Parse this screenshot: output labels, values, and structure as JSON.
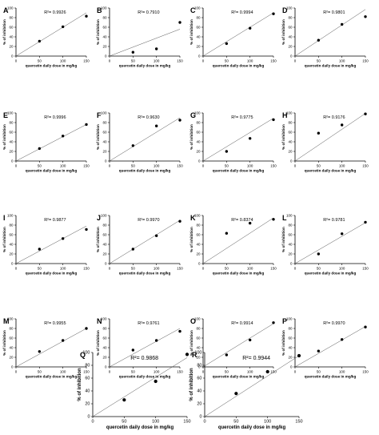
{
  "figure": {
    "common": {
      "xlabel": "quercetin daily dose in mg/kg",
      "ylabel": "% of inhibition",
      "xticks": [
        0,
        50,
        100,
        150
      ],
      "yticks": [
        0,
        20,
        40,
        60,
        80,
        100
      ],
      "xlim": [
        0,
        150
      ],
      "ylim": [
        0,
        100
      ]
    }
  },
  "chart_data": [
    {
      "label": "A",
      "type": "scatter",
      "r2": "R²= 0.9926",
      "x": [
        50,
        100,
        150
      ],
      "y": [
        31,
        61,
        83
      ],
      "fit": [
        [
          0,
          0
        ],
        [
          150,
          90
        ]
      ]
    },
    {
      "label": "B",
      "type": "scatter",
      "r2": "R²= 0.7910",
      "x": [
        50,
        100,
        150
      ],
      "y": [
        8,
        15,
        70
      ],
      "fit": [
        [
          0,
          0
        ],
        [
          150,
          56
        ]
      ]
    },
    {
      "label": "C",
      "type": "scatter",
      "r2": "R²= 0.9994",
      "x": [
        50,
        100,
        150
      ],
      "y": [
        26,
        58,
        88
      ],
      "fit": [
        [
          0,
          0
        ],
        [
          150,
          90
        ]
      ]
    },
    {
      "label": "D",
      "type": "scatter",
      "r2": "R²= 0.9801",
      "x": [
        50,
        100,
        150
      ],
      "y": [
        33,
        66,
        82
      ],
      "fit": [
        [
          0,
          0
        ],
        [
          150,
          97
        ]
      ]
    },
    {
      "label": "E",
      "type": "scatter",
      "r2": "R²= 0.9996",
      "x": [
        50,
        100,
        150
      ],
      "y": [
        26,
        52,
        76
      ],
      "fit": [
        [
          0,
          0
        ],
        [
          150,
          76
        ]
      ]
    },
    {
      "label": "F",
      "type": "scatter",
      "r2": "R²= 0.9630",
      "x": [
        50,
        100,
        150
      ],
      "y": [
        32,
        73,
        85
      ],
      "fit": [
        [
          0,
          0
        ],
        [
          150,
          90
        ]
      ]
    },
    {
      "label": "G",
      "type": "scatter",
      "r2": "R²= 0.9775",
      "x": [
        50,
        100,
        150
      ],
      "y": [
        20,
        47,
        86
      ],
      "fit": [
        [
          0,
          0
        ],
        [
          150,
          89
        ]
      ]
    },
    {
      "label": "H",
      "type": "scatter",
      "r2": "R²= 0.9176",
      "x": [
        50,
        100,
        150
      ],
      "y": [
        58,
        75,
        98
      ],
      "fit": [
        [
          0,
          0
        ],
        [
          150,
          99
        ]
      ]
    },
    {
      "label": "I",
      "type": "scatter",
      "r2": "R²= 0.9877",
      "x": [
        50,
        100,
        150
      ],
      "y": [
        30,
        52,
        71
      ],
      "fit": [
        [
          0,
          0
        ],
        [
          150,
          78
        ]
      ]
    },
    {
      "label": "J",
      "type": "scatter",
      "r2": "R²= 0.9970",
      "x": [
        50,
        100,
        150
      ],
      "y": [
        30,
        58,
        88
      ],
      "fit": [
        [
          0,
          0
        ],
        [
          150,
          90
        ]
      ]
    },
    {
      "label": "K",
      "type": "scatter",
      "r2": "R²= 0.8374",
      "x": [
        50,
        100,
        150
      ],
      "y": [
        63,
        84,
        92
      ],
      "fit": [
        [
          0,
          0
        ],
        [
          150,
          95
        ]
      ]
    },
    {
      "label": "L",
      "type": "scatter",
      "r2": "R²= 0.9781",
      "x": [
        50,
        100,
        150
      ],
      "y": [
        20,
        62,
        86
      ],
      "fit": [
        [
          0,
          0
        ],
        [
          150,
          85
        ]
      ]
    },
    {
      "label": "M",
      "type": "scatter",
      "r2": "R²= 0.9955",
      "x": [
        50,
        100,
        150
      ],
      "y": [
        32,
        55,
        80
      ],
      "fit": [
        [
          0,
          0
        ],
        [
          150,
          80
        ]
      ]
    },
    {
      "label": "N",
      "type": "scatter",
      "r2": "R²= 0.9761",
      "x": [
        50,
        100,
        150
      ],
      "y": [
        35,
        55,
        74
      ],
      "fit": [
        [
          0,
          0
        ],
        [
          150,
          80
        ]
      ]
    },
    {
      "label": "O",
      "type": "scatter",
      "r2": "R²= 0.9914",
      "x": [
        50,
        100,
        150
      ],
      "y": [
        25,
        56,
        92
      ],
      "fit": [
        [
          0,
          0
        ],
        [
          150,
          90
        ]
      ]
    },
    {
      "label": "P",
      "type": "scatter",
      "r2": "R²= 0.9970",
      "x": [
        50,
        100,
        150
      ],
      "y": [
        33,
        57,
        83
      ],
      "fit": [
        [
          0,
          0
        ],
        [
          150,
          84
        ]
      ]
    },
    {
      "label": "Q",
      "type": "scatter",
      "r2": "R²= 0.9868",
      "x": [
        50,
        100,
        150
      ],
      "y": [
        26,
        55,
        97
      ],
      "fit": [
        [
          0,
          0
        ],
        [
          150,
          92
        ]
      ]
    },
    {
      "label": "R",
      "type": "scatter",
      "r2": "R²= 0.9944",
      "x": [
        50,
        100,
        150
      ],
      "y": [
        36,
        70,
        95
      ],
      "fit": [
        [
          0,
          0
        ],
        [
          150,
          95
        ]
      ]
    }
  ]
}
